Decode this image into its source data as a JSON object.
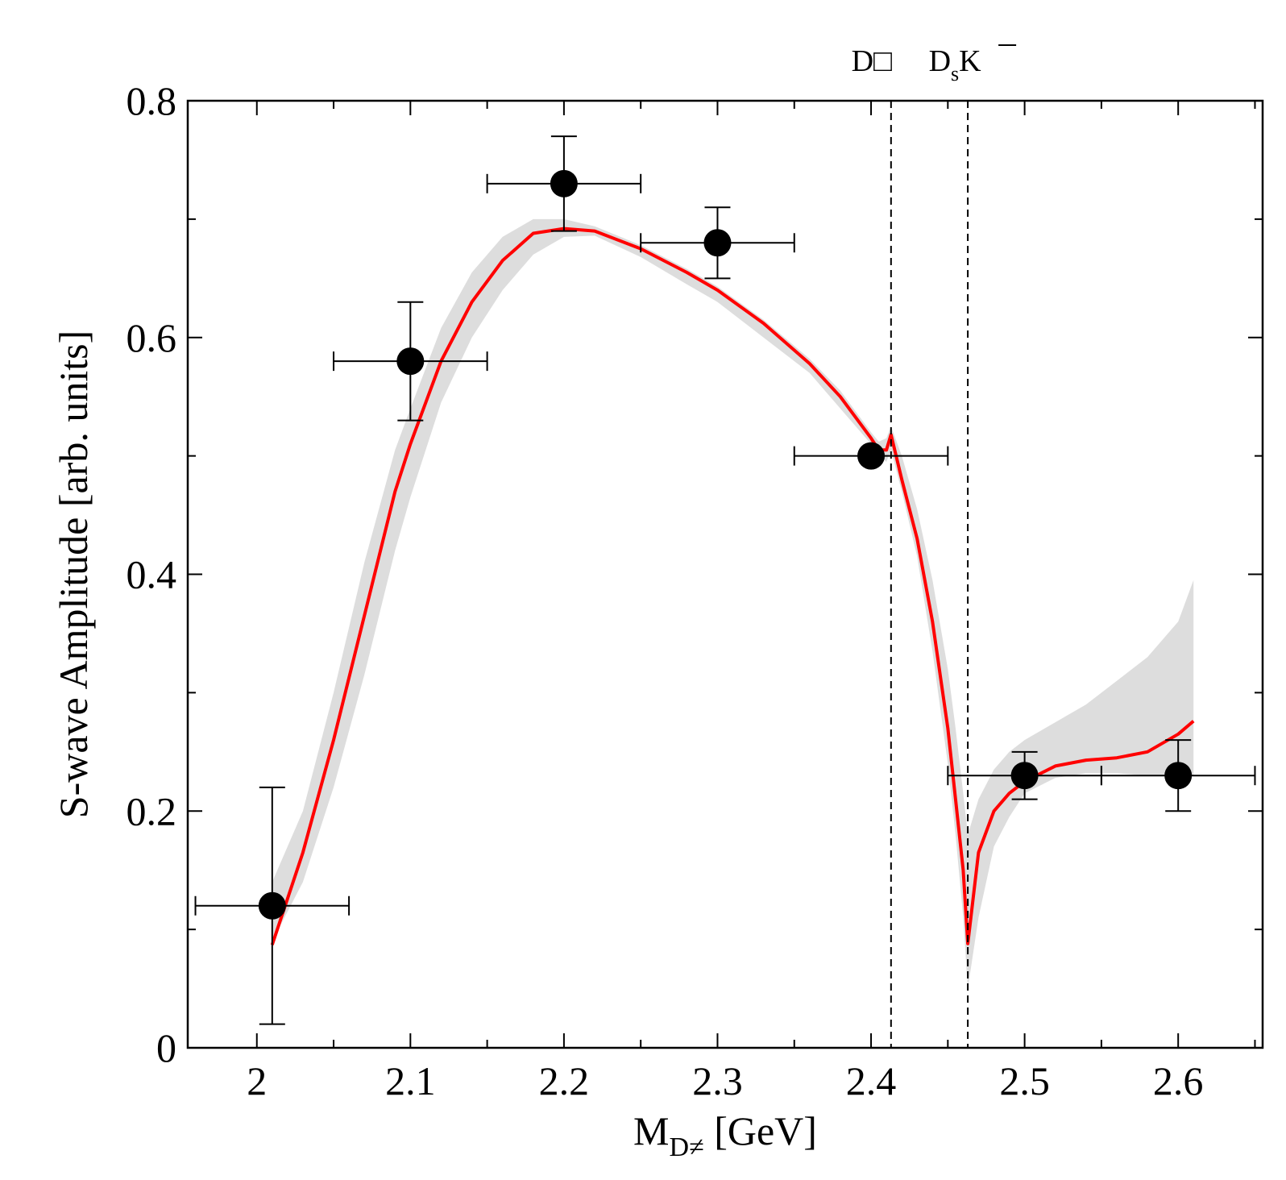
{
  "chart_data": {
    "type": "scatter",
    "xlabel_main": "M",
    "xlabel_sub": "D≠",
    "xlabel_unit": " [GeV]",
    "ylabel": "S-wave Amplitude [arb. units]",
    "xlim": [
      1.955,
      2.655
    ],
    "ylim": [
      0,
      0.8
    ],
    "x_ticks": [
      2,
      2.1,
      2.2,
      2.3,
      2.4,
      2.5,
      2.6
    ],
    "x_tick_labels": [
      "2",
      "2.1",
      "2.2",
      "2.3",
      "2.4",
      "2.5",
      "2.6"
    ],
    "y_ticks": [
      0,
      0.2,
      0.4,
      0.6,
      0.8
    ],
    "y_tick_labels": [
      "0",
      "0.2",
      "0.4",
      "0.6",
      "0.8"
    ],
    "x_minor_ticks": [
      2.05,
      2.15,
      2.25,
      2.35,
      2.45,
      2.55,
      2.65
    ],
    "y_minor_ticks": [
      0.1,
      0.3,
      0.5,
      0.7
    ],
    "grid": false,
    "thresholds": [
      {
        "x": 2.413,
        "label_main": "D□",
        "label_sub": "",
        "label_over": ""
      },
      {
        "x": 2.463,
        "label_main": "D",
        "label_sub": "s",
        "label_over": "K"
      }
    ],
    "points": [
      {
        "x": 2.01,
        "y": 0.12,
        "xerr": 0.05,
        "yerr_low": 0.1,
        "yerr_high": 0.1
      },
      {
        "x": 2.1,
        "y": 0.58,
        "xerr": 0.05,
        "yerr_low": 0.05,
        "yerr_high": 0.05
      },
      {
        "x": 2.2,
        "y": 0.73,
        "xerr": 0.05,
        "yerr_low": 0.04,
        "yerr_high": 0.04
      },
      {
        "x": 2.3,
        "y": 0.68,
        "xerr": 0.05,
        "yerr_low": 0.03,
        "yerr_high": 0.03
      },
      {
        "x": 2.4,
        "y": 0.5,
        "xerr": 0.05,
        "yerr_low": 0.0,
        "yerr_high": 0.0
      },
      {
        "x": 2.5,
        "y": 0.23,
        "xerr": 0.05,
        "yerr_low": 0.02,
        "yerr_high": 0.02
      },
      {
        "x": 2.6,
        "y": 0.23,
        "xerr": 0.05,
        "yerr_low": 0.03,
        "yerr_high": 0.03
      }
    ],
    "curve": {
      "color": "#ff0000",
      "x": [
        2.01,
        2.03,
        2.05,
        2.07,
        2.09,
        2.1,
        2.12,
        2.14,
        2.16,
        2.18,
        2.2,
        2.22,
        2.25,
        2.28,
        2.3,
        2.33,
        2.36,
        2.38,
        2.4,
        2.405,
        2.41,
        2.413,
        2.42,
        2.43,
        2.44,
        2.45,
        2.455,
        2.46,
        2.463,
        2.47,
        2.48,
        2.49,
        2.5,
        2.52,
        2.54,
        2.56,
        2.58,
        2.6,
        2.61
      ],
      "y": [
        0.087,
        0.165,
        0.26,
        0.365,
        0.47,
        0.51,
        0.58,
        0.63,
        0.665,
        0.688,
        0.692,
        0.69,
        0.675,
        0.655,
        0.64,
        0.612,
        0.578,
        0.55,
        0.515,
        0.505,
        0.505,
        0.518,
        0.48,
        0.43,
        0.36,
        0.27,
        0.21,
        0.15,
        0.088,
        0.165,
        0.2,
        0.215,
        0.225,
        0.238,
        0.243,
        0.245,
        0.25,
        0.265,
        0.276
      ]
    },
    "band": {
      "color": "#dddddd",
      "x": [
        2.01,
        2.03,
        2.05,
        2.07,
        2.09,
        2.1,
        2.12,
        2.14,
        2.16,
        2.18,
        2.2,
        2.22,
        2.25,
        2.28,
        2.3,
        2.33,
        2.36,
        2.38,
        2.4,
        2.405,
        2.41,
        2.413,
        2.42,
        2.43,
        2.44,
        2.45,
        2.455,
        2.46,
        2.463,
        2.47,
        2.48,
        2.49,
        2.5,
        2.52,
        2.54,
        2.56,
        2.58,
        2.6,
        2.61
      ],
      "upper": [
        0.14,
        0.2,
        0.3,
        0.41,
        0.505,
        0.54,
        0.608,
        0.655,
        0.685,
        0.7,
        0.7,
        0.694,
        0.678,
        0.658,
        0.643,
        0.615,
        0.582,
        0.555,
        0.52,
        0.512,
        0.515,
        0.525,
        0.5,
        0.455,
        0.395,
        0.32,
        0.27,
        0.215,
        0.18,
        0.21,
        0.235,
        0.25,
        0.26,
        0.275,
        0.29,
        0.31,
        0.33,
        0.36,
        0.395
      ],
      "lower": [
        0.09,
        0.14,
        0.22,
        0.315,
        0.42,
        0.465,
        0.545,
        0.6,
        0.64,
        0.67,
        0.685,
        0.686,
        0.668,
        0.645,
        0.63,
        0.6,
        0.57,
        0.54,
        0.51,
        0.5,
        0.495,
        0.505,
        0.47,
        0.415,
        0.335,
        0.24,
        0.18,
        0.11,
        0.05,
        0.11,
        0.17,
        0.195,
        0.215,
        0.228,
        0.232,
        0.232,
        0.23,
        0.23,
        0.23
      ]
    }
  }
}
